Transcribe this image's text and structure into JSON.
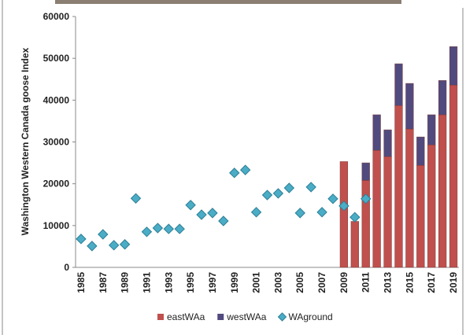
{
  "chart_data": {
    "type": "bar",
    "y_label": "Washington Western Canada goose Index",
    "categories": [
      "1985",
      null,
      "1987",
      null,
      "1989",
      null,
      "1991",
      null,
      "1993",
      null,
      "1995",
      null,
      "1997",
      null,
      "1999",
      null,
      "2001",
      null,
      "2003",
      null,
      "2005",
      null,
      "2007",
      null,
      "2009",
      null,
      "2011",
      null,
      "2013",
      null,
      "2015",
      null,
      "2017",
      null,
      "2019"
    ],
    "series": [
      {
        "name": "eastWAa",
        "kind": "stacked-bar",
        "color": "#c0504d",
        "values": [
          null,
          null,
          null,
          null,
          null,
          null,
          null,
          null,
          null,
          null,
          null,
          null,
          null,
          null,
          null,
          null,
          null,
          null,
          null,
          null,
          null,
          null,
          null,
          null,
          25300,
          11000,
          20800,
          28000,
          26500,
          38700,
          33100,
          24400,
          29300,
          36500,
          43600
        ]
      },
      {
        "name": "westWAa",
        "kind": "stacked-bar",
        "color": "#504a7e",
        "values": [
          null,
          null,
          null,
          null,
          null,
          null,
          null,
          null,
          null,
          null,
          null,
          null,
          null,
          null,
          null,
          null,
          null,
          null,
          null,
          null,
          null,
          null,
          null,
          null,
          0,
          0,
          4200,
          8500,
          6400,
          10000,
          10900,
          6800,
          7200,
          8200,
          9200
        ]
      },
      {
        "name": "WAground",
        "kind": "diamond",
        "color": "#4bacc6",
        "values": [
          6800,
          5100,
          7900,
          5300,
          5500,
          16500,
          8500,
          9400,
          9200,
          9200,
          14900,
          12600,
          13000,
          11100,
          22600,
          23300,
          13200,
          17300,
          17700,
          19000,
          13000,
          19200,
          13200,
          16400,
          14700,
          12000,
          16400,
          null,
          null,
          null,
          null,
          null,
          null,
          null,
          null
        ]
      }
    ],
    "ylim": [
      0,
      60000
    ],
    "yticks": [
      0,
      10000,
      20000,
      30000,
      40000,
      50000,
      60000
    ],
    "grid": false
  }
}
